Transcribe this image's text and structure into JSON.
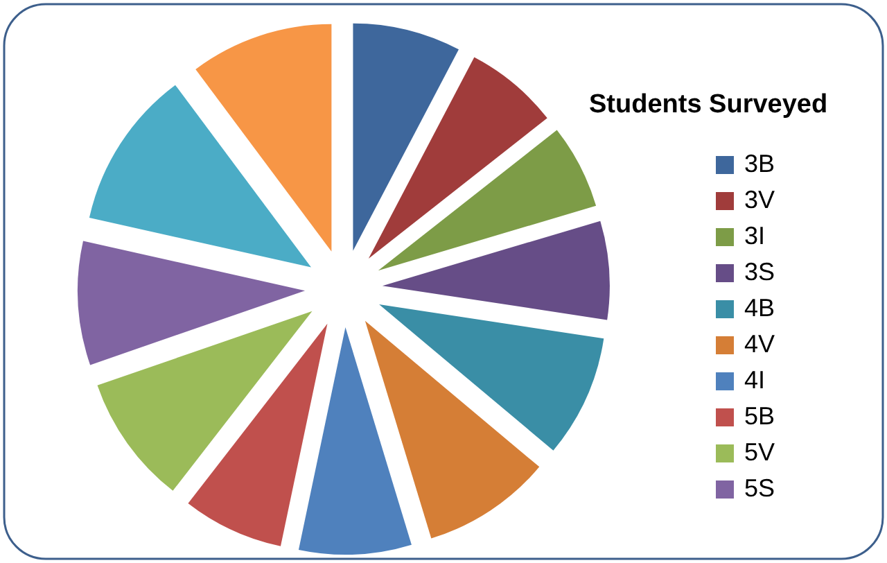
{
  "chart_data": {
    "type": "pie",
    "legend_title": "Students Surveyed",
    "categories": [
      "3B",
      "3V",
      "3I",
      "3S",
      "4B",
      "4V",
      "4I",
      "5B",
      "5V",
      "5S",
      null,
      null
    ],
    "values": [
      7.7,
      6.7,
      6.0,
      7.0,
      8.7,
      9.2,
      8.0,
      7.2,
      9.2,
      8.8,
      11.3,
      10.2
    ],
    "colors": [
      "#3e679c",
      "#a03c3b",
      "#7d9c47",
      "#664d87",
      "#3a8ea6",
      "#d57e36",
      "#4f81bd",
      "#c0504d",
      "#9bbb59",
      "#8064a2",
      "#4bacc6",
      "#f79646"
    ],
    "legend": "right"
  }
}
